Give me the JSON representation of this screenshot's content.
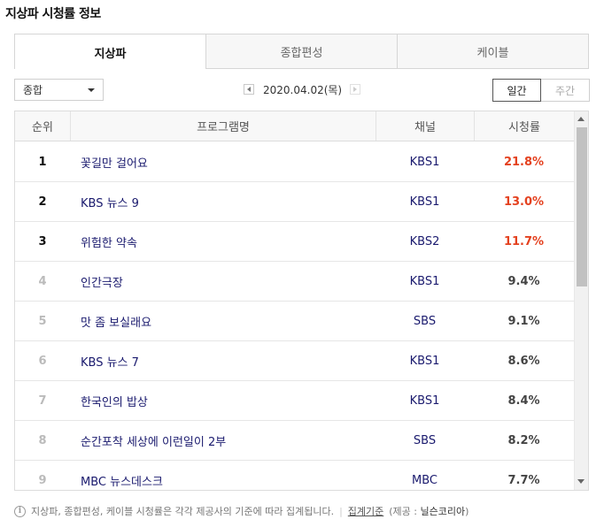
{
  "page": {
    "title": "지상파 시청률 정보"
  },
  "tabs": [
    {
      "label": "지상파",
      "active": true
    },
    {
      "label": "종합편성",
      "active": false
    },
    {
      "label": "케이블",
      "active": false
    }
  ],
  "filter": {
    "selected": "종합"
  },
  "date": {
    "value": "2020.04.02(목)"
  },
  "period": {
    "daily": "일간",
    "weekly": "주간"
  },
  "table": {
    "headers": {
      "rank": "순위",
      "program": "프로그램명",
      "channel": "채널",
      "rating": "시청률"
    },
    "rows": [
      {
        "rank": "1",
        "program": "꽃길만 걸어요",
        "channel": "KBS1",
        "rating": "21.8%"
      },
      {
        "rank": "2",
        "program": "KBS 뉴스 9",
        "channel": "KBS1",
        "rating": "13.0%"
      },
      {
        "rank": "3",
        "program": "위험한 약속",
        "channel": "KBS2",
        "rating": "11.7%"
      },
      {
        "rank": "4",
        "program": "인간극장",
        "channel": "KBS1",
        "rating": "9.4%"
      },
      {
        "rank": "5",
        "program": "맛 좀 보실래요",
        "channel": "SBS",
        "rating": "9.1%"
      },
      {
        "rank": "6",
        "program": "KBS 뉴스 7",
        "channel": "KBS1",
        "rating": "8.6%"
      },
      {
        "rank": "7",
        "program": "한국인의 밥상",
        "channel": "KBS1",
        "rating": "8.4%"
      },
      {
        "rank": "8",
        "program": "순간포착 세상에 이런일이 2부",
        "channel": "SBS",
        "rating": "8.2%"
      },
      {
        "rank": "9",
        "program": "MBC 뉴스데스크",
        "channel": "MBC",
        "rating": "7.7%"
      }
    ]
  },
  "footer": {
    "note": "지상파, 종합편성, 케이블 시청률은 각각 제공사의 기준에 따라 집계됩니다.",
    "link": "집계기준",
    "source_prefix": "(제공 :",
    "source_name": "닐슨코리아",
    "source_suffix": ")"
  },
  "colors": {
    "highlight": "#e4411f",
    "link": "#1a1a6e"
  },
  "icons": {
    "info": "info-icon",
    "prev": "chevron-left-icon",
    "next": "chevron-right-icon",
    "dropdown": "chevron-down-icon"
  }
}
